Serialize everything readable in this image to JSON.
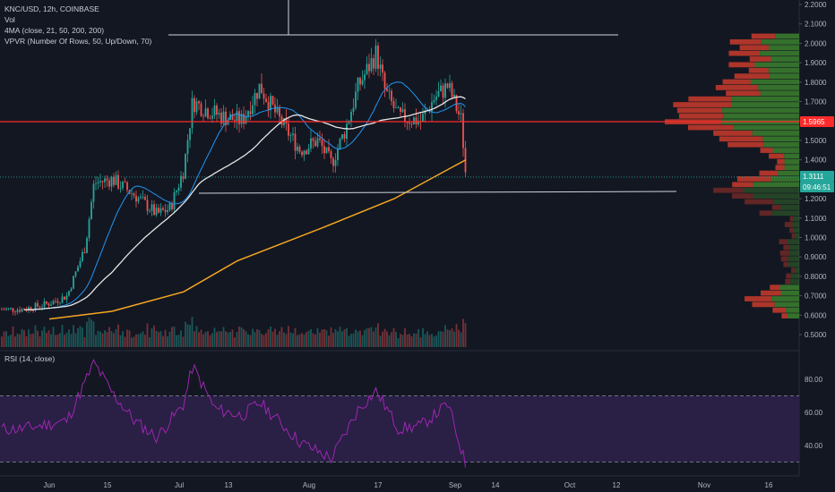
{
  "legend": {
    "symbol": "KNC/USD, 12h, COINBASE",
    "vol": "Vol",
    "ma": "4MA (close, 21, 50, 200, 200)",
    "vpvr": "VPVR (Number Of Rows, 50, Up/Down, 70)",
    "rsi": "RSI (14, close)"
  },
  "price_axis": {
    "ticks": [
      "2.2000",
      "2.1000",
      "2.0000",
      "1.9000",
      "1.8000",
      "1.7000",
      "1.6000",
      "1.5000",
      "1.4000",
      "1.3000",
      "1.2000",
      "1.1000",
      "1.0000",
      "0.9000",
      "0.8000",
      "0.7000",
      "0.6000",
      "0.5000"
    ],
    "horizontal_line_label": "1.5965",
    "last_price_label": "1.3111",
    "countdown_label": "09:46:51"
  },
  "rsi_axis": {
    "ticks": [
      "80.00",
      "60.00",
      "40.00"
    ]
  },
  "time_axis": {
    "ticks": [
      "Jun",
      "15",
      "Jul",
      "13",
      "Aug",
      "17",
      "Sep",
      "14",
      "Oct",
      "12",
      "Nov",
      "16"
    ]
  },
  "colors": {
    "background": "#131722",
    "up": "#26a69a",
    "down": "#ef5350",
    "ma200": "#f5a623",
    "ma50": "#e6e6e6",
    "ma21": "#2196f3",
    "resistance": "#ff2b2b",
    "rsi_line": "#9c27b0",
    "rsi_band": "#2a1f45",
    "vpvr_up": "#3a7a2e",
    "vpvr_down": "#c0392b"
  },
  "chart_data": [
    {
      "type": "candlestick",
      "x": [
        "Jun",
        "15",
        "Jul",
        "13",
        "Aug",
        "17",
        "Sep",
        "14",
        "Oct",
        "12",
        "Nov",
        "16"
      ],
      "ylim": [
        0.45,
        2.25
      ],
      "lines": [
        {
          "level": 1.5965
        },
        {
          "level": 1.3111
        }
      ],
      "price_keypoints": [
        {
          "date": "May 26",
          "close": 0.63
        },
        {
          "date": "Jun 1",
          "close": 0.66
        },
        {
          "date": "Jun 5",
          "close": 0.7
        },
        {
          "date": "Jun 9",
          "close": 0.95
        },
        {
          "date": "Jun 11",
          "close": 1.28
        },
        {
          "date": "Jun 15",
          "close": 1.3
        },
        {
          "date": "Jun 20",
          "close": 1.22
        },
        {
          "date": "Jun 25",
          "close": 1.12
        },
        {
          "date": "Jun 28",
          "close": 1.15
        },
        {
          "date": "Jul 1",
          "close": 1.35
        },
        {
          "date": "Jul 3",
          "close": 1.7
        },
        {
          "date": "Jul 6",
          "close": 1.66
        },
        {
          "date": "Jul 10",
          "close": 1.62
        },
        {
          "date": "Jul 14",
          "close": 1.6
        },
        {
          "date": "Jul 18",
          "close": 1.78
        },
        {
          "date": "Jul 22",
          "close": 1.62
        },
        {
          "date": "Jul 27",
          "close": 1.45
        },
        {
          "date": "Jul 31",
          "close": 1.5
        },
        {
          "date": "Aug 3",
          "close": 1.38
        },
        {
          "date": "Aug 6",
          "close": 1.55
        },
        {
          "date": "Aug 9",
          "close": 1.78
        },
        {
          "date": "Aug 13",
          "close": 1.95
        },
        {
          "date": "Aug 15",
          "close": 1.75
        },
        {
          "date": "Aug 18",
          "close": 1.62
        },
        {
          "date": "Aug 23",
          "close": 1.6
        },
        {
          "date": "Aug 26",
          "close": 1.72
        },
        {
          "date": "Aug 29",
          "close": 1.78
        },
        {
          "date": "Sep 1",
          "close": 1.6
        },
        {
          "date": "Sep 2",
          "close": 1.31
        }
      ],
      "ma200_keypoints": [
        {
          "date": "Jun 1",
          "value": 0.58
        },
        {
          "date": "Jun 15",
          "value": 0.62
        },
        {
          "date": "Jul 1",
          "value": 0.72
        },
        {
          "date": "Jul 13",
          "value": 0.88
        },
        {
          "date": "Aug 1",
          "value": 1.05
        },
        {
          "date": "Aug 17",
          "value": 1.2
        },
        {
          "date": "Sep 2",
          "value": 1.4
        }
      ],
      "vpvr_rows_approx": 50
    },
    {
      "type": "line",
      "name": "RSI",
      "ylim": [
        25,
        95
      ],
      "band": [
        30,
        70
      ],
      "keypoints": [
        {
          "date": "May 26",
          "value": 50
        },
        {
          "date": "Jun 5",
          "value": 55
        },
        {
          "date": "Jun 11",
          "value": 90
        },
        {
          "date": "Jun 15",
          "value": 72
        },
        {
          "date": "Jun 20",
          "value": 55
        },
        {
          "date": "Jun 25",
          "value": 45
        },
        {
          "date": "Jul 1",
          "value": 65
        },
        {
          "date": "Jul 3",
          "value": 88
        },
        {
          "date": "Jul 8",
          "value": 62
        },
        {
          "date": "Jul 14",
          "value": 58
        },
        {
          "date": "Jul 18",
          "value": 66
        },
        {
          "date": "Jul 27",
          "value": 42
        },
        {
          "date": "Aug 1",
          "value": 35
        },
        {
          "date": "Aug 3",
          "value": 32
        },
        {
          "date": "Aug 9",
          "value": 62
        },
        {
          "date": "Aug 13",
          "value": 73
        },
        {
          "date": "Aug 18",
          "value": 50
        },
        {
          "date": "Aug 23",
          "value": 52
        },
        {
          "date": "Aug 29",
          "value": 65
        },
        {
          "date": "Sep 2",
          "value": 28
        }
      ]
    }
  ]
}
